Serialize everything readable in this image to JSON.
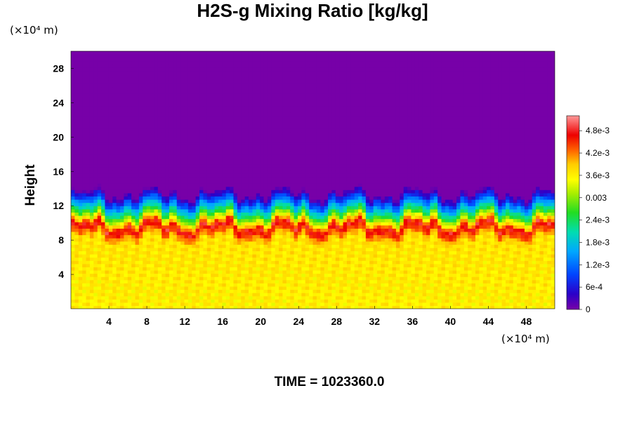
{
  "chart_data": {
    "type": "heatmap",
    "title": "H2S-g Mixing Ratio [kg/kg]",
    "ylabel": "Height",
    "x_unit": "(×10⁴ m)",
    "y_unit": "(×10⁴ m)",
    "xlim": [
      0,
      51
    ],
    "ylim": [
      0,
      30
    ],
    "x_ticks": [
      "4",
      "8",
      "12",
      "16",
      "20",
      "24",
      "28",
      "32",
      "36",
      "40",
      "44",
      "48"
    ],
    "y_ticks": [
      "4",
      "8",
      "12",
      "16",
      "20",
      "24",
      "28"
    ],
    "x_tick_values": [
      4,
      8,
      12,
      16,
      20,
      24,
      28,
      32,
      36,
      40,
      44,
      48
    ],
    "y_tick_values": [
      4,
      8,
      12,
      16,
      20,
      24,
      28
    ],
    "colorbar": {
      "min": 0,
      "max": 0.0052,
      "labels": [
        "4.8e-3",
        "4.2e-3",
        "3.6e-3",
        "0.003",
        "2.4e-3",
        "1.8e-3",
        "1.2e-3",
        "6e-4",
        "0"
      ],
      "label_values": [
        0.0048,
        0.0042,
        0.0036,
        0.003,
        0.0024,
        0.0018,
        0.0012,
        0.0006,
        0
      ]
    },
    "field_profile": [
      {
        "height": 0,
        "value": 0.0036
      },
      {
        "height": 8,
        "value": 0.0037
      },
      {
        "height": 9.5,
        "value": 0.0048
      },
      {
        "height": 11,
        "value": 0.0026
      },
      {
        "height": 12.5,
        "value": 0.001
      },
      {
        "height": 13.5,
        "value": 0
      }
    ],
    "grid": false,
    "legend": "right colorbar"
  },
  "footer": {
    "time_label": "TIME = 1023360.0"
  }
}
